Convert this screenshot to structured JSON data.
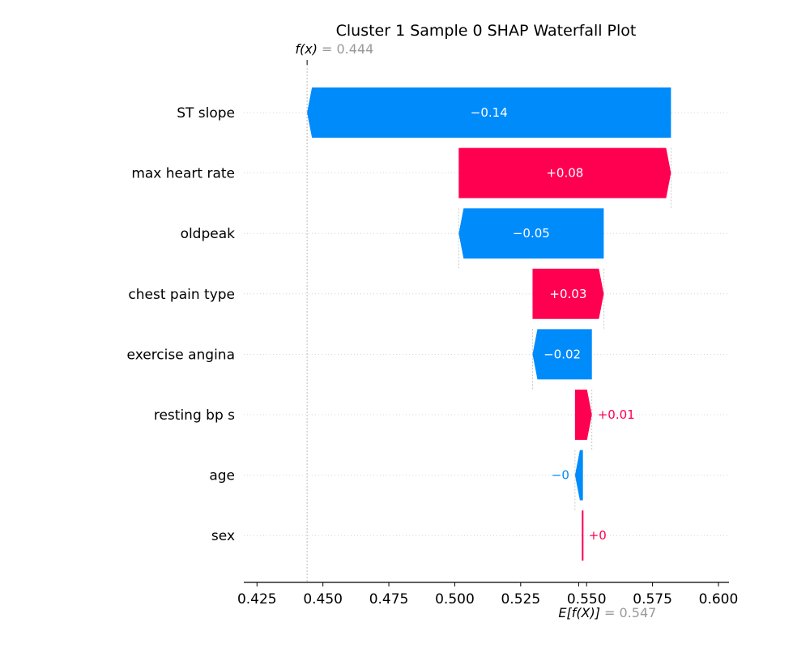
{
  "chart_data": {
    "type": "waterfall",
    "title": "Cluster 1 Sample 0 SHAP Waterfall Plot",
    "fx_label": "f(x)",
    "fx_value_text": "= 0.444",
    "ex_label": "E[f(X)]",
    "ex_value_text": "= 0.547",
    "base_value": 0.547,
    "output_value": 0.444,
    "xlim": [
      0.42,
      0.604
    ],
    "xticks": [
      "0.425",
      "0.450",
      "0.475",
      "0.500",
      "0.525",
      "0.550",
      "0.575",
      "0.600"
    ],
    "features": [
      {
        "name": "ST slope",
        "label": "−0.14",
        "start": 0.582,
        "end": 0.444
      },
      {
        "name": "max heart rate",
        "label": "+0.08",
        "start": 0.5015,
        "end": 0.582
      },
      {
        "name": "oldpeak",
        "label": "−0.05",
        "start": 0.5565,
        "end": 0.5015
      },
      {
        "name": "chest pain type",
        "label": "+0.03",
        "start": 0.5295,
        "end": 0.5565
      },
      {
        "name": "exercise angina",
        "label": "−0.02",
        "start": 0.552,
        "end": 0.5295
      },
      {
        "name": "resting bp s",
        "label": "+0.01",
        "start": 0.5456,
        "end": 0.552
      },
      {
        "name": "age",
        "label": "−0",
        "start": 0.5486,
        "end": 0.5456
      },
      {
        "name": "sex",
        "label": "+0",
        "start": 0.5485,
        "end": 0.5486
      }
    ],
    "colors": {
      "positive": "#ff0051",
      "negative": "#008bfb",
      "value_gray": "#999999"
    }
  }
}
